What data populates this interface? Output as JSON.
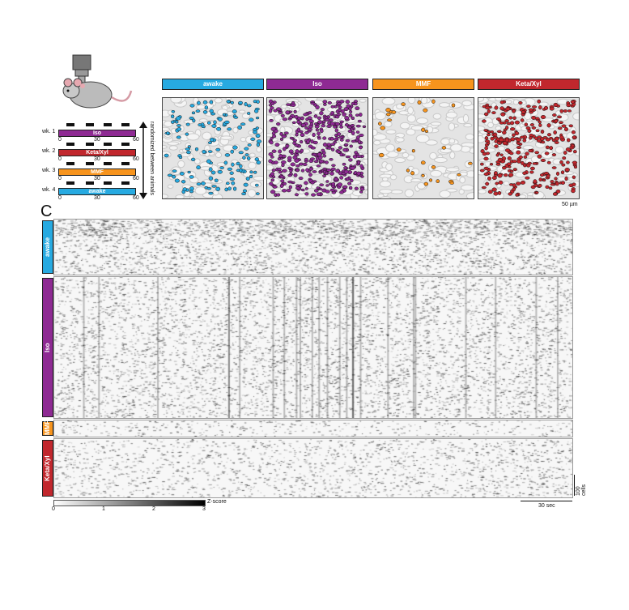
{
  "panel_letter": "C",
  "schedule": {
    "weeks": [
      {
        "label": "wk. 1",
        "drug": "Iso",
        "color": "#8e2a93"
      },
      {
        "label": "wk. 2",
        "drug": "Keta/Xyl",
        "color": "#c1272d"
      },
      {
        "label": "wk. 3",
        "drug": "MMF",
        "color": "#f7941d"
      },
      {
        "label": "wk. 4",
        "drug": "awake",
        "color": "#27aae1"
      }
    ],
    "ticks": [
      "0",
      "30",
      "60"
    ],
    "side_label": "randomized between animals"
  },
  "conditions": [
    {
      "name": "awake",
      "color": "#27aae1"
    },
    {
      "name": "Iso",
      "color": "#8e2a93"
    },
    {
      "name": "MMF",
      "color": "#f7941d"
    },
    {
      "name": "Keta/Xyl",
      "color": "#c1272d"
    }
  ],
  "image_scale_bar": "50 µm",
  "colorbar": {
    "ticks": [
      "0",
      "1",
      "2",
      "3"
    ],
    "label": "Z-score"
  },
  "raster_scale": {
    "cells": "100 cells",
    "time": "30 sec"
  }
}
